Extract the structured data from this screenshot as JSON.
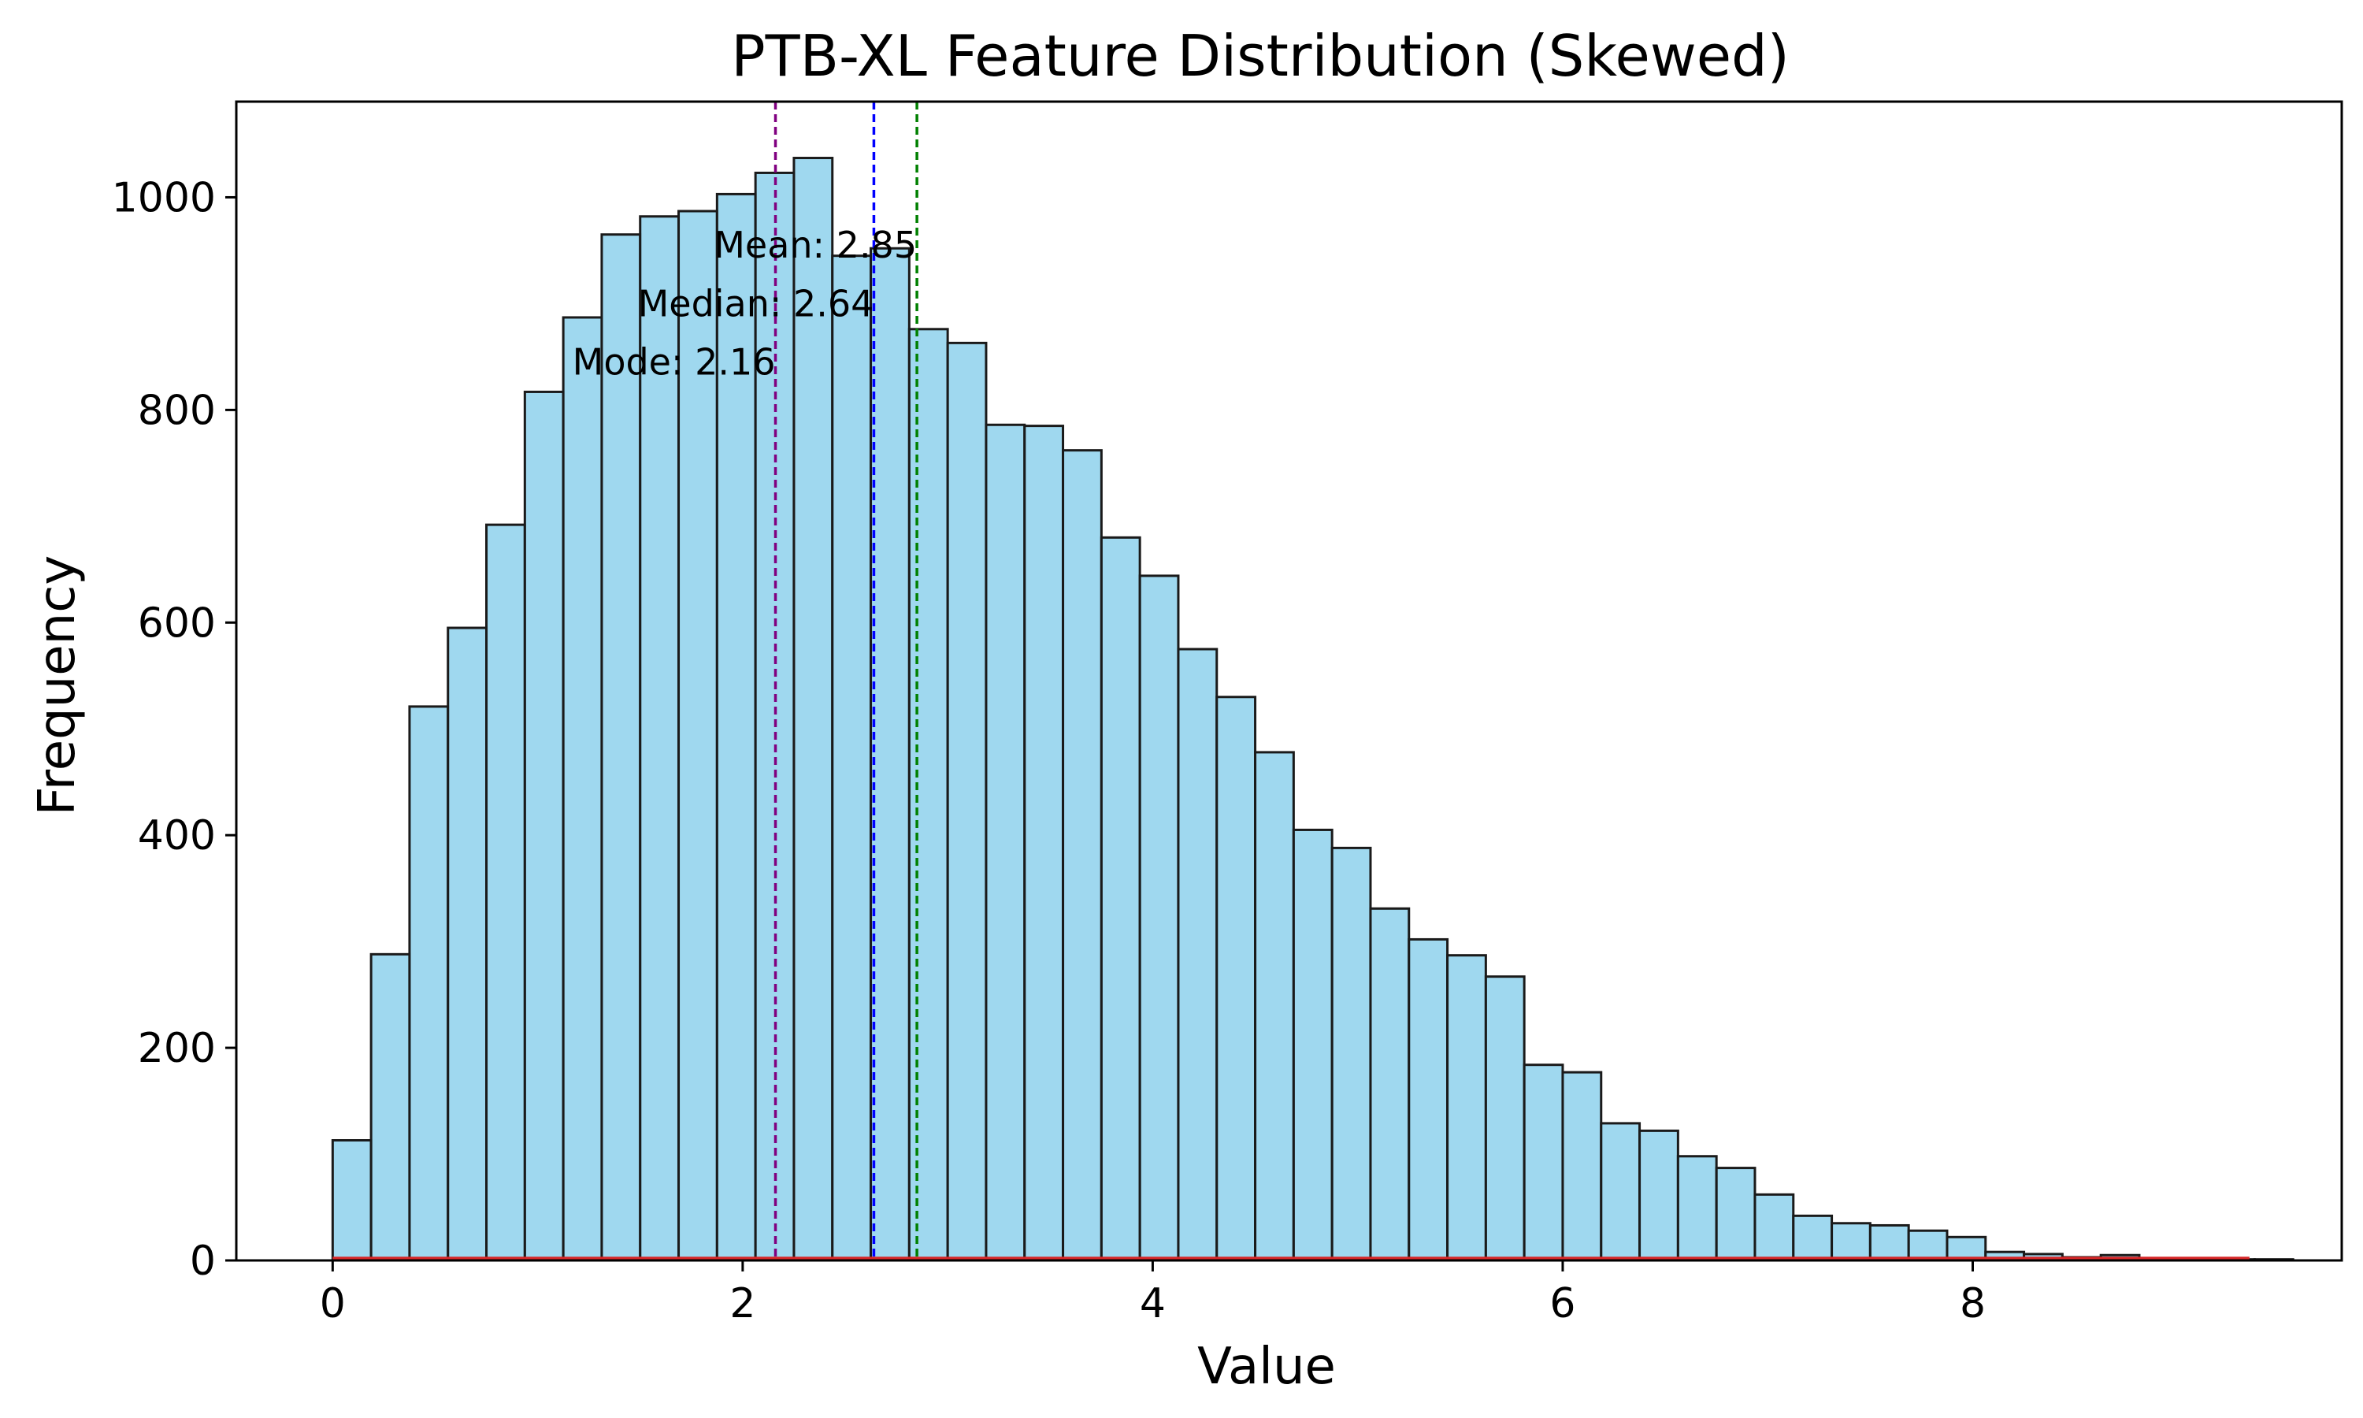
{
  "chart_data": {
    "type": "bar",
    "title": "PTB-XL Feature Distribution (Skewed)",
    "xlabel": "Value",
    "ylabel": "Frequency",
    "xlim": [
      -0.47,
      9.8
    ],
    "ylim": [
      0,
      1090
    ],
    "xticks": [
      0,
      2,
      4,
      6,
      8
    ],
    "yticks": [
      0,
      200,
      400,
      600,
      800,
      1000
    ],
    "grid": false,
    "bin_start": 0.0,
    "bin_width": 0.1875,
    "values": [
      113,
      288,
      521,
      595,
      692,
      817,
      887,
      965,
      982,
      987,
      1003,
      1023,
      1037,
      945,
      952,
      876,
      863,
      786,
      785,
      762,
      680,
      644,
      575,
      530,
      478,
      405,
      388,
      331,
      302,
      287,
      267,
      184,
      177,
      129,
      122,
      98,
      87,
      62,
      42,
      35,
      33,
      28,
      22,
      8,
      6,
      3,
      5,
      2,
      1,
      1,
      1,
      0,
      0,
      0,
      0,
      0,
      0,
      0
    ],
    "bar_color": "#87CEEB",
    "bar_edge_color": "#1a1a1a",
    "density_line": {
      "color": "#d62728",
      "x": [
        0,
        9.35
      ],
      "y": [
        2,
        2
      ]
    },
    "vlines": [
      {
        "label": "Mean: 2.85",
        "x": 2.85,
        "color": "#008000"
      },
      {
        "label": "Median: 2.64",
        "x": 2.64,
        "color": "#0000ff"
      },
      {
        "label": "Mode: 2.16",
        "x": 2.16,
        "color": "#800080"
      }
    ],
    "annotations": [
      {
        "text": "Mean: 2.85",
        "x": 2.85,
        "y": 955
      },
      {
        "text": "Median: 2.64",
        "x": 2.64,
        "y": 900
      },
      {
        "text": "Mode: 2.16",
        "x": 2.16,
        "y": 845
      }
    ]
  }
}
